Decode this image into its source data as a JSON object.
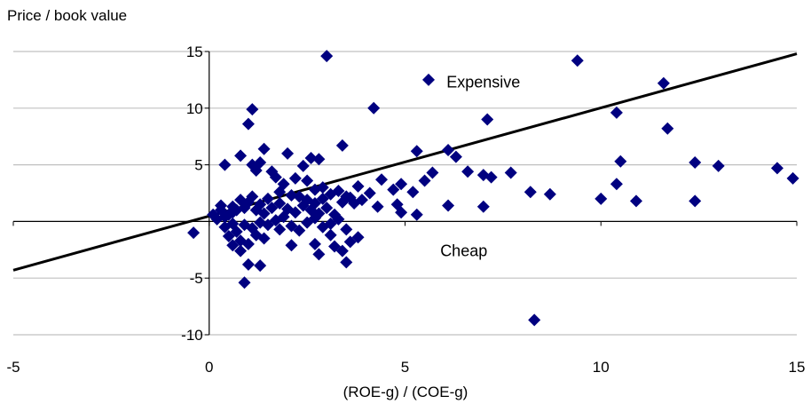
{
  "chart_data": {
    "type": "scatter",
    "title": "",
    "ylabel": "Price / book value",
    "xlabel": "(ROE-g) / (COE-g)",
    "xlim": [
      -5,
      15
    ],
    "ylim": [
      -10,
      15
    ],
    "xticks": [
      -5,
      0,
      5,
      10,
      15
    ],
    "yticks": [
      -10,
      -5,
      5,
      10,
      15
    ],
    "grid": "horizontal",
    "marker_color": "#000080",
    "line_color": "#000000",
    "annotations": [
      {
        "text": "Expensive",
        "x": 7.0,
        "y": 12.3
      },
      {
        "text": "Cheap",
        "x": 6.5,
        "y": -2.6
      }
    ],
    "trendline": {
      "x": [
        -5,
        15
      ],
      "y": [
        -4.3,
        14.8
      ]
    },
    "points": [
      [
        3.0,
        14.6
      ],
      [
        9.4,
        14.2
      ],
      [
        5.6,
        12.5
      ],
      [
        11.6,
        12.2
      ],
      [
        10.4,
        9.6
      ],
      [
        11.7,
        8.2
      ],
      [
        4.2,
        10.0
      ],
      [
        1.1,
        9.9
      ],
      [
        1.0,
        8.6
      ],
      [
        7.1,
        9.0
      ],
      [
        0.4,
        5.0
      ],
      [
        0.8,
        5.8
      ],
      [
        1.4,
        6.4
      ],
      [
        2.0,
        6.0
      ],
      [
        3.4,
        6.7
      ],
      [
        5.3,
        6.2
      ],
      [
        6.1,
        6.3
      ],
      [
        6.3,
        5.7
      ],
      [
        10.5,
        5.3
      ],
      [
        12.4,
        5.2
      ],
      [
        13.0,
        4.9
      ],
      [
        14.5,
        4.7
      ],
      [
        14.9,
        3.8
      ],
      [
        7.7,
        4.3
      ],
      [
        6.6,
        4.4
      ],
      [
        7.0,
        4.1
      ],
      [
        7.2,
        3.9
      ],
      [
        5.7,
        4.3
      ],
      [
        5.5,
        3.6
      ],
      [
        5.2,
        2.6
      ],
      [
        4.9,
        3.3
      ],
      [
        4.7,
        2.8
      ],
      [
        8.2,
        2.6
      ],
      [
        8.7,
        2.4
      ],
      [
        10.4,
        3.3
      ],
      [
        10.0,
        2.0
      ],
      [
        10.9,
        1.8
      ],
      [
        12.4,
        1.8
      ],
      [
        7.0,
        1.3
      ],
      [
        6.1,
        1.4
      ],
      [
        5.3,
        0.6
      ],
      [
        4.9,
        0.8
      ],
      [
        4.8,
        1.5
      ],
      [
        4.3,
        1.3
      ],
      [
        4.4,
        3.7
      ],
      [
        4.1,
        2.5
      ],
      [
        3.8,
        3.1
      ],
      [
        3.6,
        2.1
      ],
      [
        1.1,
        5.0
      ],
      [
        1.3,
        5.2
      ],
      [
        1.6,
        4.4
      ],
      [
        1.7,
        3.9
      ],
      [
        1.2,
        4.5
      ],
      [
        1.9,
        3.3
      ],
      [
        2.2,
        3.8
      ],
      [
        2.4,
        4.9
      ],
      [
        2.6,
        5.6
      ],
      [
        2.8,
        5.5
      ],
      [
        2.9,
        3.0
      ],
      [
        3.1,
        2.4
      ],
      [
        3.3,
        2.7
      ],
      [
        3.5,
        2.2
      ],
      [
        3.7,
        1.6
      ],
      [
        3.9,
        1.9
      ],
      [
        2.5,
        3.6
      ],
      [
        2.7,
        2.8
      ],
      [
        2.1,
        2.3
      ],
      [
        1.8,
        2.6
      ],
      [
        1.5,
        2.0
      ],
      [
        1.3,
        1.5
      ],
      [
        1.1,
        2.2
      ],
      [
        1.0,
        1.7
      ],
      [
        0.9,
        1.2
      ],
      [
        0.7,
        1.0
      ],
      [
        0.6,
        0.8
      ],
      [
        0.5,
        0.6
      ],
      [
        0.4,
        0.4
      ],
      [
        0.3,
        1.0
      ],
      [
        0.2,
        0.2
      ],
      [
        0.1,
        0.6
      ],
      [
        0.3,
        1.4
      ],
      [
        0.6,
        1.3
      ],
      [
        0.8,
        1.9
      ],
      [
        1.2,
        1.0
      ],
      [
        1.4,
        0.7
      ],
      [
        1.6,
        1.2
      ],
      [
        1.8,
        1.6
      ],
      [
        2.0,
        1.1
      ],
      [
        2.2,
        0.8
      ],
      [
        2.4,
        1.4
      ],
      [
        2.6,
        1.0
      ],
      [
        2.8,
        0.7
      ],
      [
        3.0,
        1.2
      ],
      [
        3.2,
        0.6
      ],
      [
        3.4,
        1.7
      ],
      [
        2.3,
        2.2
      ],
      [
        2.5,
        1.9
      ],
      [
        2.7,
        1.6
      ],
      [
        2.9,
        2.0
      ],
      [
        1.9,
        0.4
      ],
      [
        1.7,
        0.1
      ],
      [
        1.5,
        -0.3
      ],
      [
        1.3,
        -0.1
      ],
      [
        1.1,
        -0.6
      ],
      [
        0.9,
        -0.3
      ],
      [
        0.7,
        -0.9
      ],
      [
        0.5,
        -1.3
      ],
      [
        0.6,
        -0.2
      ],
      [
        0.4,
        -0.5
      ],
      [
        2.1,
        -0.4
      ],
      [
        2.3,
        -0.8
      ],
      [
        2.5,
        -0.1
      ],
      [
        2.7,
        0.3
      ],
      [
        2.9,
        -0.5
      ],
      [
        3.1,
        -0.2
      ],
      [
        3.3,
        0.2
      ],
      [
        3.5,
        -0.7
      ],
      [
        1.8,
        -0.7
      ],
      [
        -0.4,
        -1.0
      ],
      [
        0.8,
        -1.7
      ],
      [
        0.6,
        -2.1
      ],
      [
        0.8,
        -2.6
      ],
      [
        1.0,
        -2.0
      ],
      [
        1.2,
        -1.2
      ],
      [
        1.4,
        -1.5
      ],
      [
        2.1,
        -2.1
      ],
      [
        2.7,
        -2.0
      ],
      [
        2.8,
        -2.9
      ],
      [
        3.2,
        -2.2
      ],
      [
        3.6,
        -1.8
      ],
      [
        3.4,
        -2.6
      ],
      [
        3.1,
        -1.2
      ],
      [
        3.8,
        -1.4
      ],
      [
        1.0,
        -3.8
      ],
      [
        1.3,
        -3.9
      ],
      [
        3.5,
        -3.6
      ],
      [
        0.9,
        -5.4
      ],
      [
        8.3,
        -8.7
      ]
    ]
  }
}
